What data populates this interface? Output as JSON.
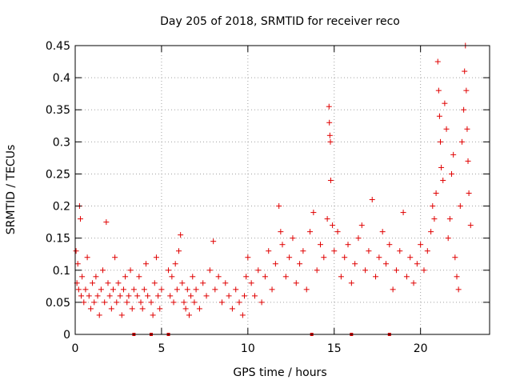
{
  "chart_data": {
    "type": "scatter",
    "title": "Day 205 of 2018, SRMTID for receiver reco",
    "xlabel": "GPS time / hours",
    "ylabel": "SRMTID / TECUs",
    "xlim": [
      0,
      24
    ],
    "ylim": [
      0,
      0.45
    ],
    "xticks": [
      0,
      5,
      10,
      15,
      20
    ],
    "yticks": [
      0,
      0.05,
      0.1,
      0.15,
      0.2,
      0.25,
      0.3,
      0.35,
      0.4,
      0.45
    ],
    "xtick_labels": [
      "0",
      "5",
      "10",
      "15",
      "20"
    ],
    "ytick_labels": [
      "0",
      "0.05",
      "0.1",
      "0.15",
      "0.2",
      "0.25",
      "0.3",
      "0.35",
      "0.4",
      "0.45"
    ],
    "grid": true,
    "marker": "plus",
    "color": "#e00000",
    "series": [
      {
        "name": "SRMTID",
        "points": [
          [
            0.05,
            0.13
          ],
          [
            0.1,
            0.08
          ],
          [
            0.15,
            0.11
          ],
          [
            0.2,
            0.07
          ],
          [
            0.25,
            0.2
          ],
          [
            0.3,
            0.18
          ],
          [
            0.35,
            0.06
          ],
          [
            0.4,
            0.09
          ],
          [
            0.5,
            0.05
          ],
          [
            0.6,
            0.07
          ],
          [
            0.7,
            0.12
          ],
          [
            0.8,
            0.06
          ],
          [
            0.9,
            0.04
          ],
          [
            1.0,
            0.08
          ],
          [
            1.1,
            0.05
          ],
          [
            1.2,
            0.09
          ],
          [
            1.3,
            0.06
          ],
          [
            1.4,
            0.03
          ],
          [
            1.5,
            0.07
          ],
          [
            1.6,
            0.1
          ],
          [
            1.7,
            0.05
          ],
          [
            1.8,
            0.175
          ],
          [
            1.9,
            0.08
          ],
          [
            2.0,
            0.06
          ],
          [
            2.1,
            0.04
          ],
          [
            2.2,
            0.07
          ],
          [
            2.3,
            0.12
          ],
          [
            2.4,
            0.05
          ],
          [
            2.5,
            0.08
          ],
          [
            2.6,
            0.06
          ],
          [
            2.7,
            0.03
          ],
          [
            2.8,
            0.07
          ],
          [
            2.9,
            0.09
          ],
          [
            3.0,
            0.05
          ],
          [
            3.1,
            0.06
          ],
          [
            3.2,
            0.1
          ],
          [
            3.3,
            0.04
          ],
          [
            3.4,
            0.07
          ],
          [
            3.6,
            0.06
          ],
          [
            3.7,
            0.09
          ],
          [
            3.8,
            0.05
          ],
          [
            3.9,
            0.04
          ],
          [
            4.0,
            0.07
          ],
          [
            4.1,
            0.11
          ],
          [
            4.2,
            0.06
          ],
          [
            4.4,
            0.05
          ],
          [
            4.5,
            0.03
          ],
          [
            4.6,
            0.08
          ],
          [
            4.7,
            0.12
          ],
          [
            4.8,
            0.06
          ],
          [
            4.9,
            0.04
          ],
          [
            5.0,
            0.07
          ],
          [
            5.4,
            0.1
          ],
          [
            5.5,
            0.06
          ],
          [
            5.6,
            0.09
          ],
          [
            5.7,
            0.05
          ],
          [
            5.8,
            0.11
          ],
          [
            5.9,
            0.07
          ],
          [
            6.0,
            0.13
          ],
          [
            6.1,
            0.155
          ],
          [
            6.2,
            0.08
          ],
          [
            6.3,
            0.05
          ],
          [
            6.4,
            0.04
          ],
          [
            6.5,
            0.07
          ],
          [
            6.6,
            0.03
          ],
          [
            6.7,
            0.06
          ],
          [
            6.8,
            0.09
          ],
          [
            6.9,
            0.05
          ],
          [
            7.0,
            0.07
          ],
          [
            7.2,
            0.04
          ],
          [
            7.4,
            0.08
          ],
          [
            7.6,
            0.06
          ],
          [
            7.8,
            0.1
          ],
          [
            8.0,
            0.145
          ],
          [
            8.1,
            0.07
          ],
          [
            8.3,
            0.09
          ],
          [
            8.5,
            0.05
          ],
          [
            8.7,
            0.08
          ],
          [
            8.9,
            0.06
          ],
          [
            9.1,
            0.04
          ],
          [
            9.3,
            0.07
          ],
          [
            9.5,
            0.05
          ],
          [
            9.7,
            0.03
          ],
          [
            9.8,
            0.06
          ],
          [
            9.9,
            0.09
          ],
          [
            10.0,
            0.12
          ],
          [
            10.2,
            0.08
          ],
          [
            10.4,
            0.06
          ],
          [
            10.6,
            0.1
          ],
          [
            10.8,
            0.05
          ],
          [
            11.0,
            0.09
          ],
          [
            11.2,
            0.13
          ],
          [
            11.4,
            0.07
          ],
          [
            11.6,
            0.11
          ],
          [
            11.8,
            0.2
          ],
          [
            11.9,
            0.16
          ],
          [
            12.0,
            0.14
          ],
          [
            12.2,
            0.09
          ],
          [
            12.4,
            0.12
          ],
          [
            12.6,
            0.15
          ],
          [
            12.8,
            0.08
          ],
          [
            13.0,
            0.11
          ],
          [
            13.2,
            0.13
          ],
          [
            13.4,
            0.07
          ],
          [
            13.6,
            0.16
          ],
          [
            13.8,
            0.19
          ],
          [
            14.0,
            0.1
          ],
          [
            14.2,
            0.14
          ],
          [
            14.4,
            0.12
          ],
          [
            14.6,
            0.18
          ],
          [
            14.7,
            0.355
          ],
          [
            14.72,
            0.33
          ],
          [
            14.75,
            0.31
          ],
          [
            14.78,
            0.3
          ],
          [
            14.8,
            0.24
          ],
          [
            14.9,
            0.17
          ],
          [
            15.0,
            0.13
          ],
          [
            15.2,
            0.16
          ],
          [
            15.4,
            0.09
          ],
          [
            15.6,
            0.12
          ],
          [
            15.8,
            0.14
          ],
          [
            16.0,
            0.08
          ],
          [
            16.2,
            0.11
          ],
          [
            16.4,
            0.15
          ],
          [
            16.6,
            0.17
          ],
          [
            16.8,
            0.1
          ],
          [
            17.0,
            0.13
          ],
          [
            17.2,
            0.21
          ],
          [
            17.4,
            0.09
          ],
          [
            17.6,
            0.12
          ],
          [
            17.8,
            0.16
          ],
          [
            18.0,
            0.11
          ],
          [
            18.2,
            0.14
          ],
          [
            18.4,
            0.07
          ],
          [
            18.6,
            0.1
          ],
          [
            18.8,
            0.13
          ],
          [
            19.0,
            0.19
          ],
          [
            19.2,
            0.09
          ],
          [
            19.4,
            0.12
          ],
          [
            19.6,
            0.08
          ],
          [
            19.8,
            0.11
          ],
          [
            20.0,
            0.14
          ],
          [
            20.2,
            0.1
          ],
          [
            20.4,
            0.13
          ],
          [
            20.6,
            0.16
          ],
          [
            20.7,
            0.2
          ],
          [
            20.8,
            0.18
          ],
          [
            20.9,
            0.22
          ],
          [
            21.0,
            0.425
          ],
          [
            21.05,
            0.38
          ],
          [
            21.1,
            0.34
          ],
          [
            21.15,
            0.3
          ],
          [
            21.2,
            0.26
          ],
          [
            21.3,
            0.24
          ],
          [
            21.4,
            0.36
          ],
          [
            21.5,
            0.32
          ],
          [
            21.6,
            0.15
          ],
          [
            21.7,
            0.18
          ],
          [
            21.8,
            0.25
          ],
          [
            21.9,
            0.28
          ],
          [
            22.0,
            0.12
          ],
          [
            22.1,
            0.09
          ],
          [
            22.2,
            0.07
          ],
          [
            22.3,
            0.2
          ],
          [
            22.4,
            0.3
          ],
          [
            22.5,
            0.35
          ],
          [
            22.55,
            0.41
          ],
          [
            22.6,
            0.45
          ],
          [
            22.65,
            0.38
          ],
          [
            22.7,
            0.32
          ],
          [
            22.75,
            0.27
          ],
          [
            22.8,
            0.22
          ],
          [
            22.9,
            0.17
          ]
        ]
      }
    ],
    "zero_points_x": [
      3.4,
      4.4,
      5.4,
      13.7,
      16.0,
      18.2
    ]
  }
}
